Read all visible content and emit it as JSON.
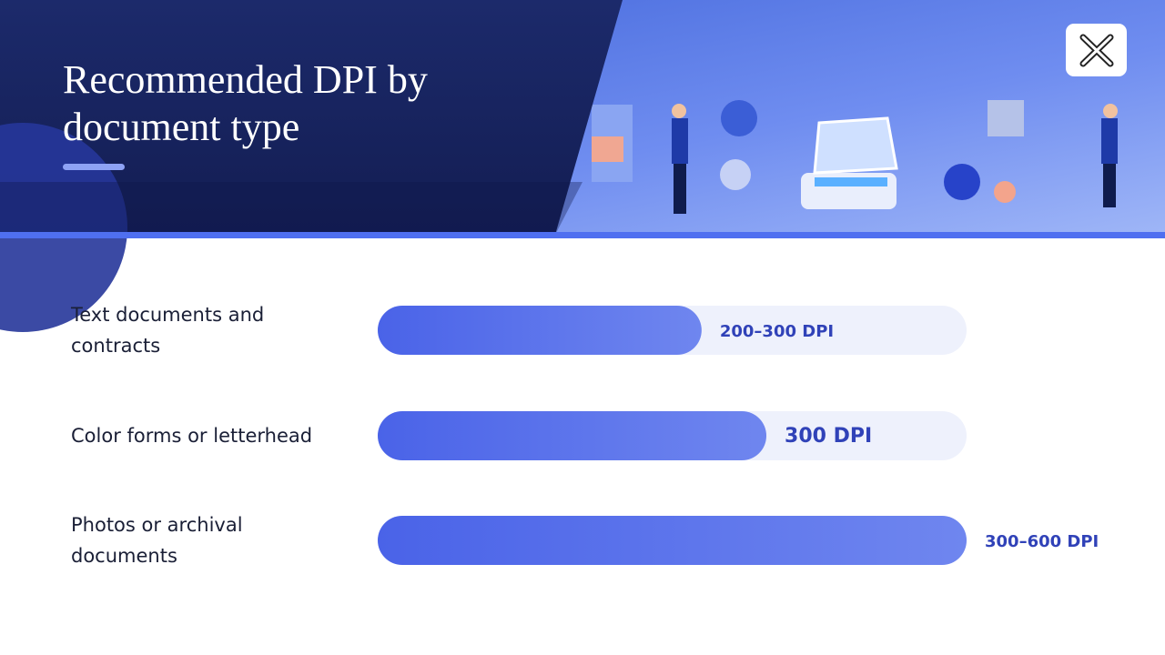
{
  "chart_data": {
    "type": "hbar",
    "title": "Recommended DPI by document type",
    "categories": [
      "Text documents and contracts",
      "Color forms or letterhead",
      "Photos or archival documents"
    ],
    "values": [
      55,
      66,
      100
    ],
    "range_labels": [
      "200–300 DPI",
      "300 DPI",
      "300–600 DPI"
    ],
    "xlim": [
      0,
      100
    ],
    "color": "#4a63e8"
  }
}
